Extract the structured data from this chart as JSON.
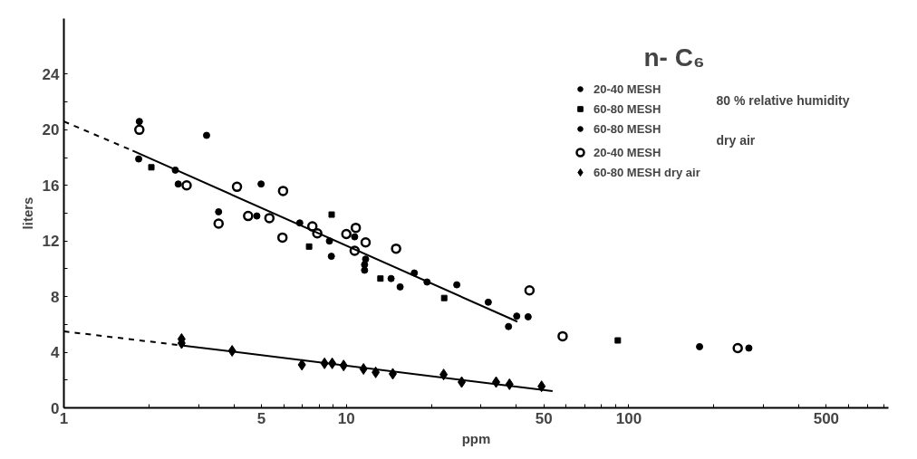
{
  "chart_data": {
    "type": "scatter",
    "title": "n- C₆",
    "xlabel": "ppm",
    "ylabel": "liters",
    "log": "x",
    "xlim": [
      1,
      830
    ],
    "ylim": [
      0,
      28
    ],
    "xticks": [
      1,
      {
        "value": 2,
        "label": null
      },
      {
        "value": 3,
        "label": null
      },
      {
        "value": 4,
        "label": null
      },
      5,
      {
        "value": 6,
        "label": null
      },
      {
        "value": 7,
        "label": null
      },
      {
        "value": 8,
        "label": null
      },
      {
        "value": 9,
        "label": null
      },
      10,
      {
        "value": 20,
        "label": null
      },
      {
        "value": 30,
        "label": null
      },
      {
        "value": 40,
        "label": null
      },
      50,
      {
        "value": 60,
        "label": null
      },
      {
        "value": 70,
        "label": null
      },
      {
        "value": 80,
        "label": null
      },
      {
        "value": 90,
        "label": null
      },
      100,
      {
        "value": 200,
        "label": null
      },
      {
        "value": 300,
        "label": null
      },
      {
        "value": 400,
        "label": null
      },
      500,
      {
        "value": 600,
        "label": null
      },
      {
        "value": 700,
        "label": null
      },
      {
        "value": 800,
        "label": null
      }
    ],
    "yticks": [
      0,
      {
        "value": 2,
        "label": null
      },
      4,
      {
        "value": 6,
        "label": null
      },
      8,
      {
        "value": 10,
        "label": null
      },
      12,
      {
        "value": 14,
        "label": null
      },
      16,
      {
        "value": 18,
        "label": null
      },
      20,
      {
        "value": 22,
        "label": null
      },
      24
    ],
    "grid": false,
    "legend": "top right",
    "annotations": [
      "80 % relative humidity",
      "dry air"
    ],
    "series": [
      {
        "name": "20-40 MESH",
        "color": "#000000",
        "marker": "circle",
        "x": [
          1.85,
          1.84,
          2.48,
          3.2,
          3.53,
          4.82,
          6.84,
          8.71,
          10.7,
          11.6,
          14.4,
          19.3,
          37.5,
          178
        ],
        "values": [
          20.6,
          17.9,
          17.1,
          19.6,
          14.1,
          13.8,
          13.3,
          12.0,
          12.3,
          10.3,
          9.3,
          9.05,
          5.85,
          4.4
        ]
      },
      {
        "name": "60-80 MESH",
        "color": "#000000",
        "marker": "square",
        "x": [
          2.04,
          7.38,
          8.87,
          13.2,
          22.2,
          91.4
        ],
        "values": [
          17.3,
          11.6,
          13.9,
          9.3,
          7.9,
          4.85
        ]
      },
      {
        "name": "60-80 MESH",
        "color": "#000000",
        "marker": "circle",
        "x": [
          2.54,
          4.99,
          8.85,
          11.7,
          11.6,
          15.5,
          17.4,
          24.6,
          31.8,
          40.1,
          44.0,
          266
        ],
        "values": [
          16.1,
          16.1,
          10.9,
          10.7,
          9.9,
          8.7,
          9.7,
          8.85,
          7.6,
          6.6,
          6.55,
          4.3
        ]
      },
      {
        "name": "20-40 MESH",
        "color": "#000000",
        "marker": "circle_open",
        "x": [
          1.85,
          2.72,
          3.53,
          4.1,
          4.49,
          5.34,
          5.97,
          5.94,
          7.58,
          7.89,
          10.0,
          10.8,
          10.7,
          11.7,
          15.0,
          44.5,
          58.3,
          243
        ],
        "values": [
          20.0,
          16.0,
          13.25,
          15.9,
          13.8,
          13.65,
          15.6,
          12.25,
          13.05,
          12.55,
          12.5,
          12.95,
          11.3,
          11.9,
          11.45,
          8.45,
          5.15,
          4.3
        ]
      },
      {
        "name": "60-80 MESH dry air",
        "color": "#000000",
        "marker": "diamond",
        "x": [
          2.61,
          2.61,
          3.94,
          6.96,
          8.37,
          8.91,
          9.78,
          11.5,
          12.7,
          14.6,
          22.1,
          25.6,
          33.9,
          37.8,
          49.1
        ],
        "values": [
          4.95,
          4.65,
          4.1,
          3.1,
          3.2,
          3.2,
          3.05,
          2.8,
          2.55,
          2.45,
          2.4,
          1.85,
          1.85,
          1.7,
          1.55
        ]
      },
      {
        "type": "line",
        "color": "#000000",
        "line_style": "dashed",
        "x": [
          1,
          1.75
        ],
        "values": [
          20.6,
          18.5
        ]
      },
      {
        "type": "line",
        "color": "#000000",
        "line_style": "solid",
        "x": [
          1.75,
          40.3
        ],
        "values": [
          18.5,
          6.2
        ]
      },
      {
        "type": "line",
        "color": "#000000",
        "line_style": "dashed",
        "x": [
          1,
          2.6
        ],
        "values": [
          5.5,
          4.5
        ]
      },
      {
        "type": "line",
        "color": "#000000",
        "line_style": "solid",
        "x": [
          2.6,
          53.7
        ],
        "values": [
          4.5,
          1.2
        ]
      }
    ]
  }
}
